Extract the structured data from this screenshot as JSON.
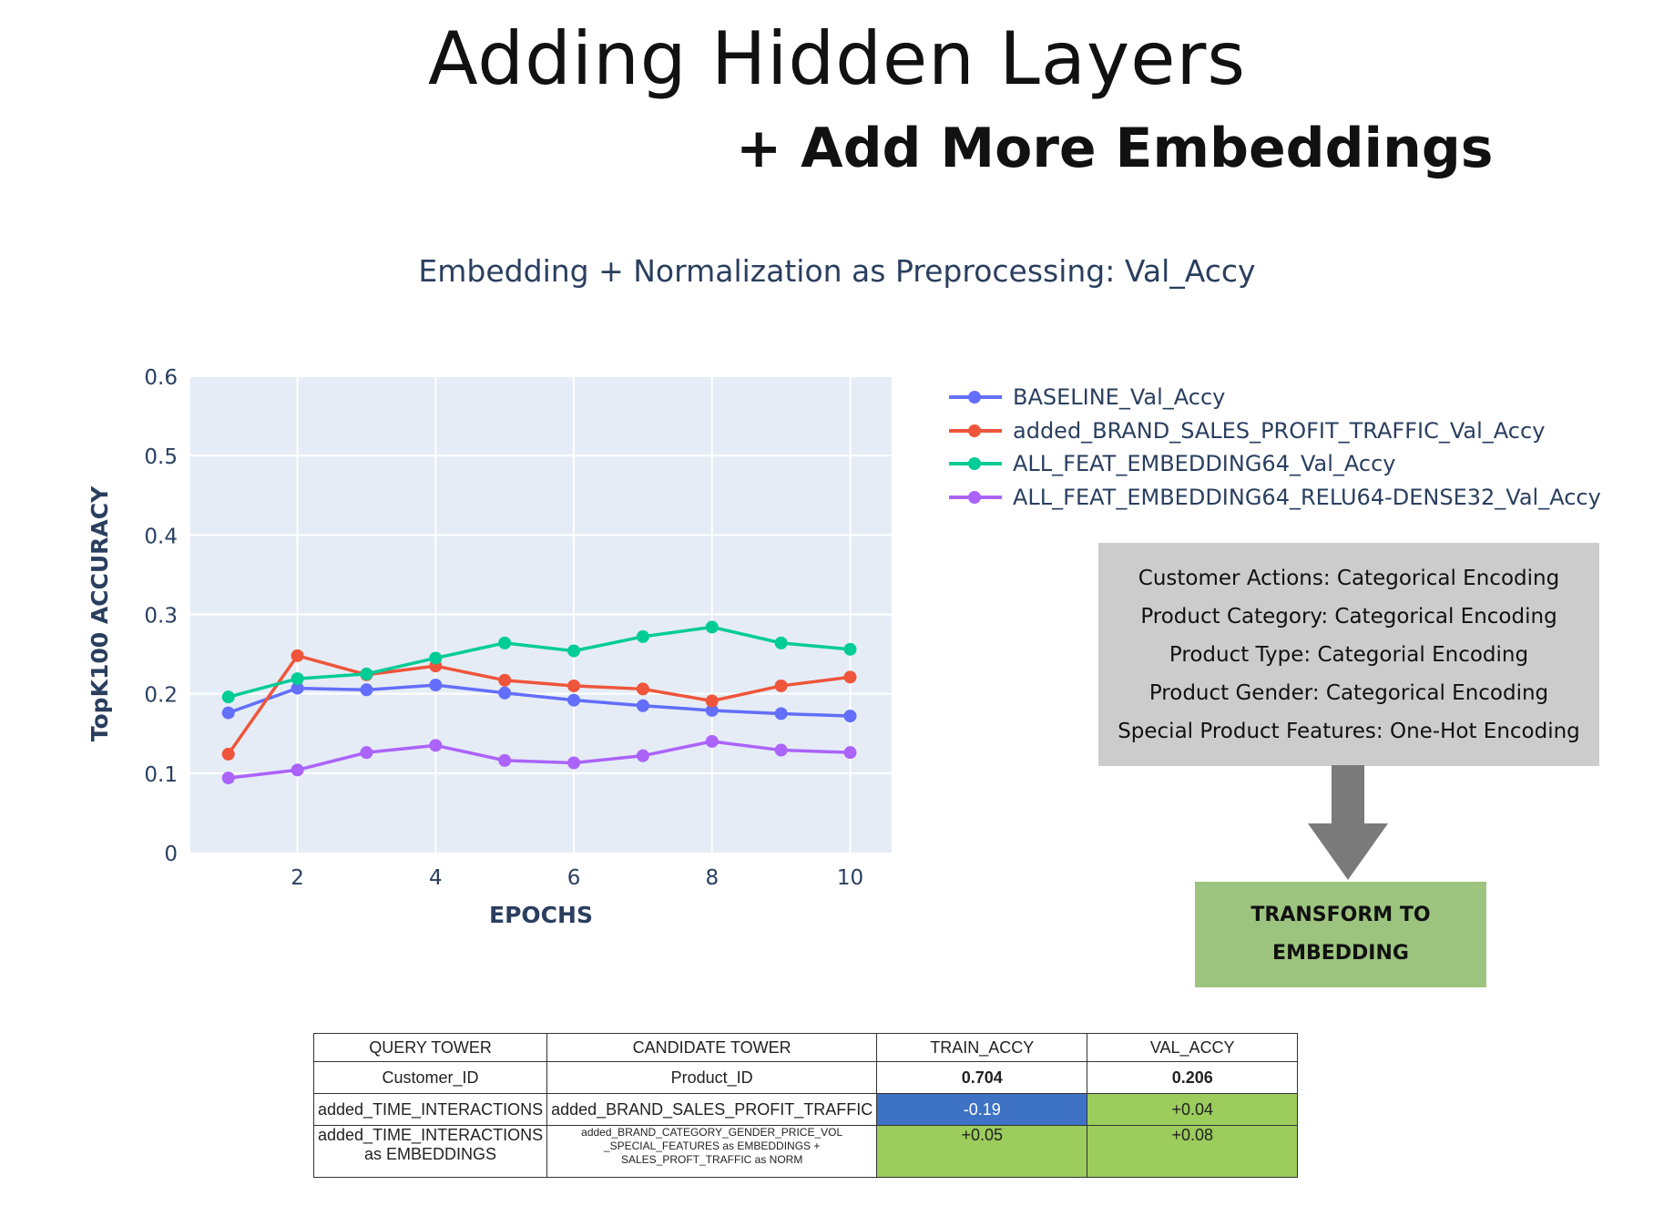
{
  "slide": {
    "title": "Adding Hidden Layers",
    "subtitle": "+ Add More Embeddings"
  },
  "chart_data": {
    "type": "line",
    "title": "Embedding + Normalization as Preprocessing: Val_Accy",
    "xlabel": "EPOCHS",
    "ylabel": "TopK100 ACCURACY",
    "xlim": [
      0.45,
      10.6
    ],
    "ylim": [
      0,
      0.6
    ],
    "xticks": [
      2,
      4,
      6,
      8,
      10
    ],
    "yticks": [
      0,
      0.1,
      0.2,
      0.3,
      0.4,
      0.5,
      0.6
    ],
    "grid": true,
    "legend_position": "right",
    "x": [
      1,
      2,
      3,
      4,
      5,
      6,
      7,
      8,
      9,
      10
    ],
    "series": [
      {
        "name": "BASELINE_Val_Accy",
        "color": "#636efa",
        "values": [
          0.176,
          0.207,
          0.205,
          0.211,
          0.201,
          0.192,
          0.185,
          0.179,
          0.175,
          0.172
        ]
      },
      {
        "name": "added_BRAND_SALES_PROFIT_TRAFFIC_Val_Accy",
        "color": "#ef553b",
        "values": [
          0.124,
          0.248,
          0.224,
          0.235,
          0.217,
          0.21,
          0.206,
          0.191,
          0.21,
          0.221
        ]
      },
      {
        "name": "ALL_FEAT_EMBEDDING64_Val_Accy",
        "color": "#00cc96",
        "values": [
          0.196,
          0.219,
          0.225,
          0.245,
          0.264,
          0.254,
          0.272,
          0.284,
          0.264,
          0.256
        ]
      },
      {
        "name": "ALL_FEAT_EMBEDDING64_RELU64-DENSE32_Val_Accy",
        "color": "#ab63fa",
        "values": [
          0.094,
          0.104,
          0.126,
          0.135,
          0.116,
          0.113,
          0.122,
          0.14,
          0.129,
          0.126
        ]
      }
    ]
  },
  "encoding_box": {
    "lines": [
      "Customer Actions: Categorical Encoding",
      "Product Category: Categorical Encoding",
      "Product Type: Categorial Encoding",
      "Product Gender: Categorical Encoding",
      "Special Product Features: One-Hot Encoding"
    ]
  },
  "transform_box": {
    "line1": "TRANSFORM TO",
    "line2": "EMBEDDING"
  },
  "results_table": {
    "headers": [
      "QUERY TOWER",
      "CANDIDATE TOWER",
      "TRAIN_ACCY",
      "VAL_ACCY"
    ],
    "rows": [
      [
        "Customer_ID",
        "Product_ID",
        "0.704",
        "0.206"
      ],
      [
        "added_TIME_INTERACTIONS",
        "added_BRAND_SALES_PROFIT_TRAFFIC",
        "-0.19",
        "+0.04"
      ],
      [
        "added_TIME_INTERACTIONS as EMBEDDINGS",
        "added_BRAND_CATEGORY_GENDER_PRICE_VOL _SPECIAL_FEATURES as EMBEDDINGS + SALES_PROFT_TRAFFIC as NORM",
        "+0.05",
        "+0.08"
      ]
    ],
    "colors": {
      "negative": "#3d72c4",
      "positive": "#9ccc5c"
    }
  }
}
